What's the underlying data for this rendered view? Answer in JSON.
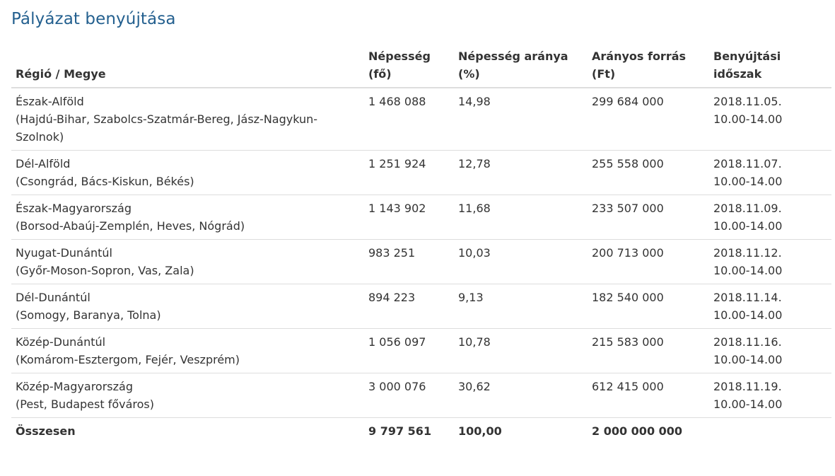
{
  "page": {
    "title": "Pályázat benyújtása"
  },
  "table": {
    "headers": {
      "region": "Régió / Megye",
      "population_l1": "Népesség",
      "population_l2": "(fő)",
      "share_l1": "Népesség aránya",
      "share_l2": "(%)",
      "funds_l1": "Arányos forrás",
      "funds_l2": "(Ft)",
      "period_l1": "Benyújtási",
      "period_l2": "időszak"
    },
    "rows": [
      {
        "region": "Észak-Alföld",
        "counties": "(Hajdú-Bihar, Szabolcs-Szatmár-Bereg, Jász-Nagykun-Szolnok)",
        "population": "1 468 088",
        "share": "14,98",
        "funds": "299 684 000",
        "date": "2018.11.05.",
        "time": "10.00-14.00"
      },
      {
        "region": "Dél-Alföld",
        "counties": "(Csongrád, Bács-Kiskun, Békés)",
        "population": "1 251 924",
        "share": "12,78",
        "funds": "255 558 000",
        "date": "2018.11.07.",
        "time": "10.00-14.00"
      },
      {
        "region": "Észak-Magyarország",
        "counties": "(Borsod-Abaúj-Zemplén, Heves, Nógrád)",
        "population": "1 143 902",
        "share": "11,68",
        "funds": "233 507 000",
        "date": "2018.11.09.",
        "time": "10.00-14.00"
      },
      {
        "region": "Nyugat-Dunántúl",
        "counties": "(Győr-Moson-Sopron, Vas, Zala)",
        "population": "983 251",
        "share": "10,03",
        "funds": "200 713 000",
        "date": "2018.11.12.",
        "time": "10.00-14.00"
      },
      {
        "region": "Dél-Dunántúl",
        "counties": "(Somogy, Baranya, Tolna)",
        "population": "894 223",
        "share": "9,13",
        "funds": "182 540 000",
        "date": "2018.11.14.",
        "time": "10.00-14.00"
      },
      {
        "region": "Közép-Dunántúl",
        "counties": "(Komárom-Esztergom, Fejér, Veszprém)",
        "population": "1 056 097",
        "share": "10,78",
        "funds": "215 583 000",
        "date": "2018.11.16.",
        "time": "10.00-14.00"
      },
      {
        "region": "Közép-Magyarország",
        "counties": "(Pest, Budapest főváros)",
        "population": "3 000 076",
        "share": "30,62",
        "funds": "612 415 000",
        "date": "2018.11.19.",
        "time": "10.00-14.00"
      }
    ],
    "total": {
      "label": "Összesen",
      "population": "9 797 561",
      "share": "100,00",
      "funds": "2 000 000 000"
    }
  },
  "colors": {
    "title": "#24608f",
    "text": "#333333",
    "border": "#dddddd"
  }
}
